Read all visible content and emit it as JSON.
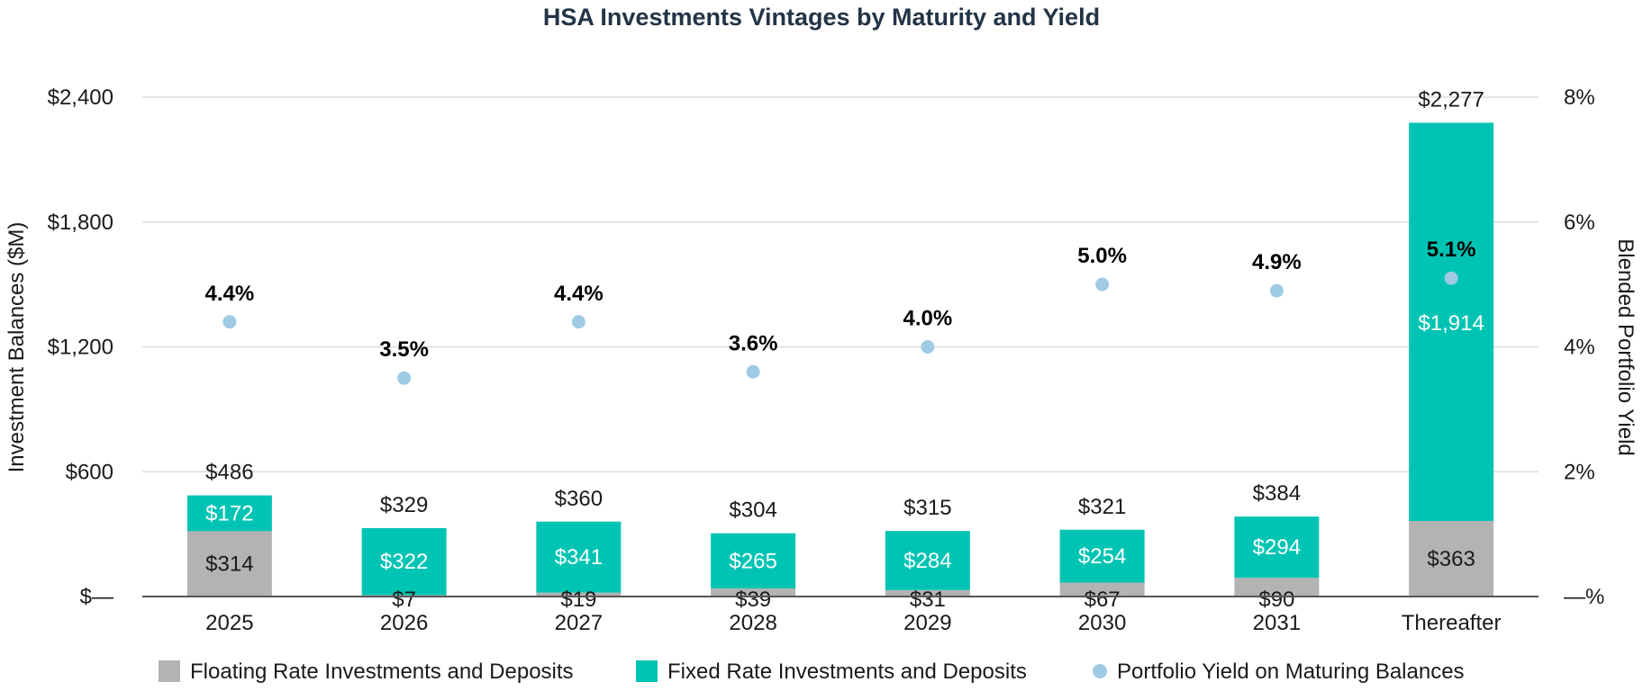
{
  "chart_data": {
    "type": "bar",
    "stacked": true,
    "title": "HSA Investments Vintages by Maturity and Yield",
    "ylabel": "Investment Balances ($M)",
    "y2label": "Blended Portfolio Yield",
    "ylim": [
      0,
      2400
    ],
    "y2lim": [
      0,
      8
    ],
    "yticks": [
      0,
      600,
      1200,
      1800,
      2400
    ],
    "ytick_labels": [
      "$—",
      "$600",
      "$1,200",
      "$1,800",
      "$2,400"
    ],
    "y2ticks": [
      0,
      2,
      4,
      6,
      8
    ],
    "y2tick_labels": [
      "—%",
      "2%",
      "4%",
      "6%",
      "8%"
    ],
    "categories": [
      "2025",
      "2026",
      "2027",
      "2028",
      "2029",
      "2030",
      "2031",
      "Thereafter"
    ],
    "series": [
      {
        "name": "Floating Rate Investments and Deposits",
        "color": "#b3b3b3",
        "values": [
          314,
          7,
          19,
          39,
          31,
          67,
          90,
          363
        ],
        "labels": [
          "$314",
          "$7",
          "$19",
          "$39",
          "$31",
          "$67",
          "$90",
          "$363"
        ]
      },
      {
        "name": "Fixed Rate Investments and Deposits",
        "color": "#00c4b3",
        "values": [
          172,
          322,
          341,
          265,
          284,
          254,
          294,
          1914
        ],
        "labels": [
          "$172",
          "$322",
          "$341",
          "$265",
          "$284",
          "$254",
          "$294",
          "$1,914"
        ]
      }
    ],
    "totals": [
      486,
      329,
      360,
      304,
      315,
      321,
      384,
      2277
    ],
    "total_labels": [
      "$486",
      "$329",
      "$360",
      "$304",
      "$315",
      "$321",
      "$384",
      "$2,277"
    ],
    "yield_series": {
      "name": "Portfolio Yield on Maturing Balances",
      "color": "#9ecae6",
      "values": [
        4.4,
        3.5,
        4.4,
        3.6,
        4.0,
        5.0,
        4.9,
        5.1
      ],
      "labels": [
        "4.4%",
        "3.5%",
        "4.4%",
        "3.6%",
        "4.0%",
        "5.0%",
        "4.9%",
        "5.1%"
      ]
    },
    "legend": [
      "Floating Rate Investments and Deposits",
      "Fixed Rate Investments and Deposits",
      "Portfolio Yield on Maturing Balances"
    ],
    "legend_position": "bottom",
    "grid": true
  }
}
